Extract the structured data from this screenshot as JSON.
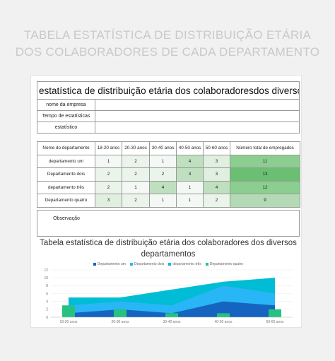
{
  "page_title_line1": "TABELA ESTATÍSTICA DE DISTRIBUIÇÃO ETÁRIA",
  "page_title_line2": "DOS COLABORADORES DE CADA DEPARTAMENTO",
  "doc_title": "estatística de distribuição etária dos colaboradoresdos diversos departa",
  "info_rows": [
    "nome da empresa",
    "Tempo de estatísticas",
    "estatístico"
  ],
  "table": {
    "headers": [
      "Nome do departamento",
      "18-20 anos",
      "20-30 anos",
      "30-40 anos",
      "40-50 anos",
      "50-60 anos",
      "Número total de empregados"
    ],
    "rows": [
      {
        "name": "departamento um",
        "values": [
          "1",
          "2",
          "1",
          "4",
          "3"
        ],
        "total": "11"
      },
      {
        "name": "Departamento dois",
        "values": [
          "2",
          "2",
          "2",
          "4",
          "3"
        ],
        "total": "13"
      },
      {
        "name": "departamento três",
        "values": [
          "2",
          "1",
          "4",
          "1",
          "4"
        ],
        "total": "12"
      },
      {
        "name": "Departamento quatro",
        "values": [
          "3",
          "2",
          "1",
          "1",
          "2"
        ],
        "total": "9"
      }
    ],
    "observation_label": "Observação"
  },
  "colors": {
    "dept1": "#1565c0",
    "dept2": "#29b6f6",
    "dept3": "#00bcd4",
    "dept4": "#26c281"
  },
  "chart_data": {
    "type": "area",
    "title": "Tabela estatística de distribuição etária dos colaboradores dos diversos departamentos",
    "categories": [
      "18-20 anos",
      "20-30 anos",
      "30-40 anos",
      "40-50 anos",
      "50-60 anos"
    ],
    "ylim": [
      0,
      12
    ],
    "yticks": [
      0,
      2,
      4,
      6,
      8,
      10,
      12
    ],
    "series": [
      {
        "name": "Departamento um",
        "values": [
          1,
          2,
          1,
          4,
          3
        ],
        "kind": "area"
      },
      {
        "name": "Departamento dois",
        "values": [
          2,
          2,
          2,
          4,
          3
        ],
        "kind": "area"
      },
      {
        "name": "departamento três",
        "values": [
          2,
          1,
          4,
          1,
          4
        ],
        "kind": "area"
      },
      {
        "name": "Departamento quatro",
        "values": [
          3,
          2,
          1,
          1,
          2
        ],
        "kind": "bar"
      }
    ],
    "legend_position": "top"
  }
}
